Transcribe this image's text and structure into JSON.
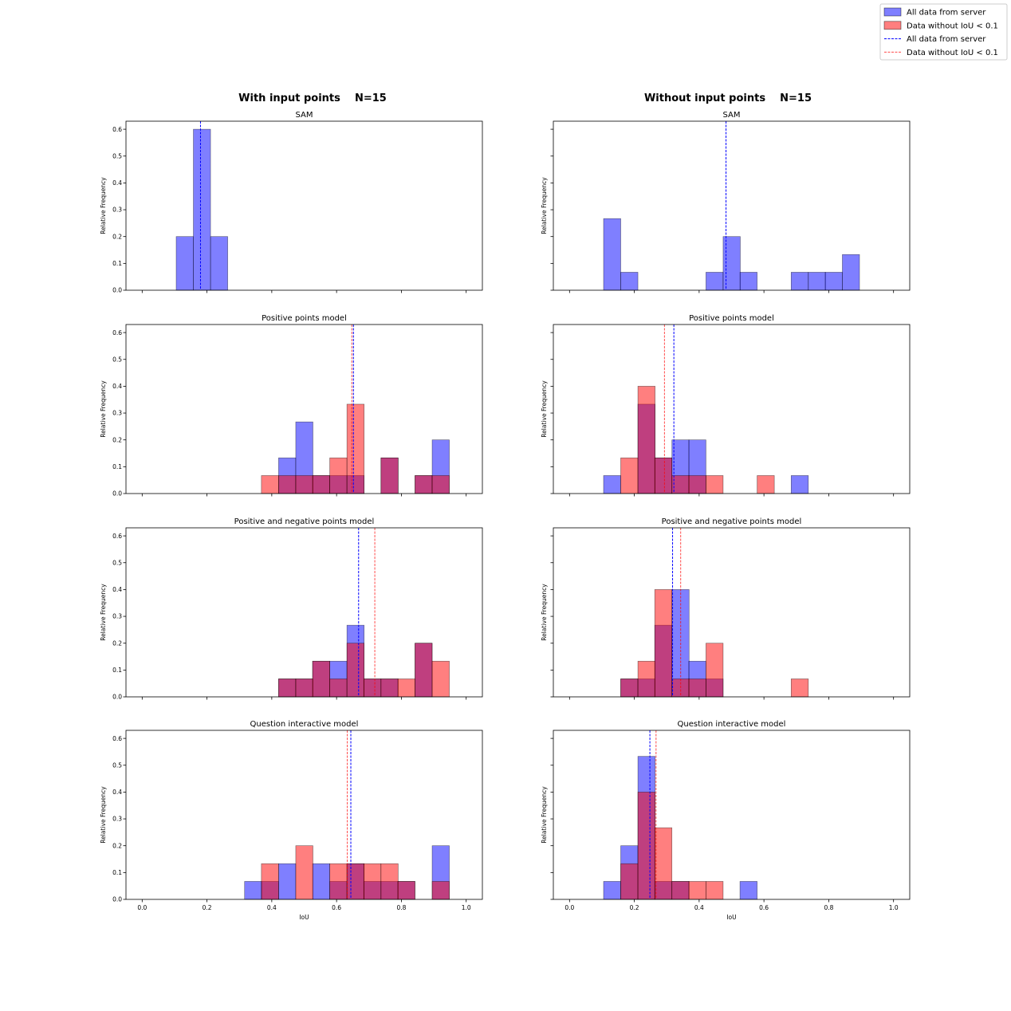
{
  "colors": {
    "all": "#0000ff",
    "filtered": "#ff0000",
    "edge": "#000000"
  },
  "legend": {
    "placement": "top-right",
    "entries": [
      {
        "label": "All data from server",
        "kind": "bar",
        "series": "all"
      },
      {
        "label": "Data without IoU < 0.1",
        "kind": "bar",
        "series": "filtered"
      },
      {
        "label": "All data from server",
        "kind": "line",
        "series": "all"
      },
      {
        "label": "Data without IoU < 0.1",
        "kind": "line",
        "series": "filtered"
      }
    ]
  },
  "columns": [
    {
      "title": "With input points    N=15"
    },
    {
      "title": "Without input points    N=15"
    }
  ],
  "chart_data": [
    {
      "type": "bar",
      "title": "SAM",
      "column": 0,
      "xlabel": "",
      "ylabel": "Relative Frequency",
      "xlim": [
        -0.05,
        1.05
      ],
      "ylim": [
        0,
        0.63
      ],
      "bin_width": 0.053,
      "series": [
        {
          "name": "All data from server",
          "key": "all",
          "bins": [
            [
              0.105,
              0.2
            ],
            [
              0.158,
              0.6
            ],
            [
              0.211,
              0.2
            ]
          ],
          "mean": 0.18
        }
      ]
    },
    {
      "type": "bar",
      "title": "Positive points model",
      "column": 0,
      "xlabel": "",
      "ylabel": "Relative Frequency",
      "xlim": [
        -0.05,
        1.05
      ],
      "ylim": [
        0,
        0.63
      ],
      "bin_width": 0.053,
      "series": [
        {
          "name": "All data from server",
          "key": "all",
          "bins": [
            [
              0.421,
              0.133
            ],
            [
              0.474,
              0.267
            ],
            [
              0.526,
              0.067
            ],
            [
              0.579,
              0.067
            ],
            [
              0.632,
              0.067
            ],
            [
              0.737,
              0.133
            ],
            [
              0.842,
              0.067
            ],
            [
              0.895,
              0.2
            ]
          ],
          "mean": 0.652
        },
        {
          "name": "Data without IoU < 0.1",
          "key": "filtered",
          "bins": [
            [
              0.368,
              0.067
            ],
            [
              0.421,
              0.067
            ],
            [
              0.474,
              0.067
            ],
            [
              0.526,
              0.067
            ],
            [
              0.579,
              0.133
            ],
            [
              0.632,
              0.333
            ],
            [
              0.737,
              0.133
            ],
            [
              0.842,
              0.067
            ],
            [
              0.895,
              0.067
            ]
          ],
          "mean": 0.647
        }
      ]
    },
    {
      "type": "bar",
      "title": "Positive and negative points model",
      "column": 0,
      "xlabel": "",
      "ylabel": "Relative Frequency",
      "xlim": [
        -0.05,
        1.05
      ],
      "ylim": [
        0,
        0.63
      ],
      "bin_width": 0.053,
      "series": [
        {
          "name": "All data from server",
          "key": "all",
          "bins": [
            [
              0.421,
              0.067
            ],
            [
              0.474,
              0.067
            ],
            [
              0.526,
              0.133
            ],
            [
              0.579,
              0.133
            ],
            [
              0.632,
              0.267
            ],
            [
              0.684,
              0.067
            ],
            [
              0.737,
              0.067
            ],
            [
              0.842,
              0.2
            ]
          ],
          "mean": 0.668
        },
        {
          "name": "Data without IoU < 0.1",
          "key": "filtered",
          "bins": [
            [
              0.421,
              0.067
            ],
            [
              0.474,
              0.067
            ],
            [
              0.526,
              0.133
            ],
            [
              0.579,
              0.067
            ],
            [
              0.632,
              0.2
            ],
            [
              0.684,
              0.067
            ],
            [
              0.737,
              0.067
            ],
            [
              0.789,
              0.067
            ],
            [
              0.842,
              0.2
            ],
            [
              0.895,
              0.133
            ]
          ],
          "mean": 0.718
        }
      ]
    },
    {
      "type": "bar",
      "title": "Question interactive model",
      "column": 0,
      "xlabel": "IoU",
      "ylabel": "Relative Frequency",
      "xlim": [
        -0.05,
        1.05
      ],
      "ylim": [
        0,
        0.63
      ],
      "bin_width": 0.053,
      "series": [
        {
          "name": "All data from server",
          "key": "all",
          "bins": [
            [
              0.316,
              0.067
            ],
            [
              0.368,
              0.067
            ],
            [
              0.421,
              0.133
            ],
            [
              0.526,
              0.133
            ],
            [
              0.579,
              0.067
            ],
            [
              0.632,
              0.133
            ],
            [
              0.684,
              0.067
            ],
            [
              0.737,
              0.067
            ],
            [
              0.789,
              0.067
            ],
            [
              0.895,
              0.2
            ]
          ],
          "mean": 0.644
        },
        {
          "name": "Data without IoU < 0.1",
          "key": "filtered",
          "bins": [
            [
              0.368,
              0.133
            ],
            [
              0.474,
              0.2
            ],
            [
              0.579,
              0.133
            ],
            [
              0.632,
              0.133
            ],
            [
              0.684,
              0.133
            ],
            [
              0.737,
              0.133
            ],
            [
              0.789,
              0.067
            ],
            [
              0.895,
              0.067
            ]
          ],
          "mean": 0.633
        }
      ]
    },
    {
      "type": "bar",
      "title": "SAM",
      "column": 1,
      "xlabel": "",
      "ylabel": "Relative Frequency",
      "xlim": [
        -0.05,
        1.05
      ],
      "ylim": [
        0,
        0.63
      ],
      "bin_width": 0.053,
      "series": [
        {
          "name": "All data from server",
          "key": "all",
          "bins": [
            [
              0.105,
              0.267
            ],
            [
              0.158,
              0.067
            ],
            [
              0.421,
              0.067
            ],
            [
              0.474,
              0.2
            ],
            [
              0.526,
              0.067
            ],
            [
              0.684,
              0.067
            ],
            [
              0.737,
              0.067
            ],
            [
              0.789,
              0.067
            ],
            [
              0.842,
              0.133
            ]
          ],
          "mean": 0.483
        }
      ]
    },
    {
      "type": "bar",
      "title": "Positive points model",
      "column": 1,
      "xlabel": "",
      "ylabel": "Relative Frequency",
      "xlim": [
        -0.05,
        1.05
      ],
      "ylim": [
        0,
        0.63
      ],
      "bin_width": 0.053,
      "series": [
        {
          "name": "All data from server",
          "key": "all",
          "bins": [
            [
              0.105,
              0.067
            ],
            [
              0.211,
              0.333
            ],
            [
              0.263,
              0.133
            ],
            [
              0.316,
              0.2
            ],
            [
              0.368,
              0.2
            ],
            [
              0.684,
              0.067
            ]
          ],
          "mean": 0.322
        },
        {
          "name": "Data without IoU < 0.1",
          "key": "filtered",
          "bins": [
            [
              0.158,
              0.133
            ],
            [
              0.211,
              0.4
            ],
            [
              0.263,
              0.133
            ],
            [
              0.316,
              0.067
            ],
            [
              0.368,
              0.067
            ],
            [
              0.421,
              0.067
            ],
            [
              0.579,
              0.067
            ]
          ],
          "mean": 0.293
        }
      ]
    },
    {
      "type": "bar",
      "title": "Positive and negative points model",
      "column": 1,
      "xlabel": "",
      "ylabel": "Relative Frequency",
      "xlim": [
        -0.05,
        1.05
      ],
      "ylim": [
        0,
        0.63
      ],
      "bin_width": 0.053,
      "series": [
        {
          "name": "All data from server",
          "key": "all",
          "bins": [
            [
              0.158,
              0.067
            ],
            [
              0.211,
              0.067
            ],
            [
              0.263,
              0.267
            ],
            [
              0.316,
              0.4
            ],
            [
              0.368,
              0.133
            ],
            [
              0.421,
              0.067
            ]
          ],
          "mean": 0.318
        },
        {
          "name": "Data without IoU < 0.1",
          "key": "filtered",
          "bins": [
            [
              0.158,
              0.067
            ],
            [
              0.211,
              0.133
            ],
            [
              0.263,
              0.4
            ],
            [
              0.316,
              0.067
            ],
            [
              0.368,
              0.067
            ],
            [
              0.421,
              0.2
            ],
            [
              0.684,
              0.067
            ]
          ],
          "mean": 0.343
        }
      ]
    },
    {
      "type": "bar",
      "title": "Question interactive model",
      "column": 1,
      "xlabel": "IoU",
      "ylabel": "Relative Frequency",
      "xlim": [
        -0.05,
        1.05
      ],
      "ylim": [
        0,
        0.63
      ],
      "bin_width": 0.053,
      "series": [
        {
          "name": "All data from server",
          "key": "all",
          "bins": [
            [
              0.105,
              0.067
            ],
            [
              0.158,
              0.2
            ],
            [
              0.211,
              0.533
            ],
            [
              0.263,
              0.067
            ],
            [
              0.316,
              0.067
            ],
            [
              0.526,
              0.067
            ]
          ],
          "mean": 0.248
        },
        {
          "name": "Data without IoU < 0.1",
          "key": "filtered",
          "bins": [
            [
              0.158,
              0.133
            ],
            [
              0.211,
              0.4
            ],
            [
              0.263,
              0.267
            ],
            [
              0.316,
              0.067
            ],
            [
              0.368,
              0.067
            ],
            [
              0.421,
              0.067
            ]
          ],
          "mean": 0.267
        }
      ]
    }
  ],
  "axes": {
    "xticks": [
      "0.0",
      "0.2",
      "0.4",
      "0.6",
      "0.8",
      "1.0"
    ],
    "yticks": [
      "0.0",
      "0.1",
      "0.2",
      "0.3",
      "0.4",
      "0.5",
      "0.6"
    ],
    "ytick_labels_shared": "left-column-only"
  }
}
